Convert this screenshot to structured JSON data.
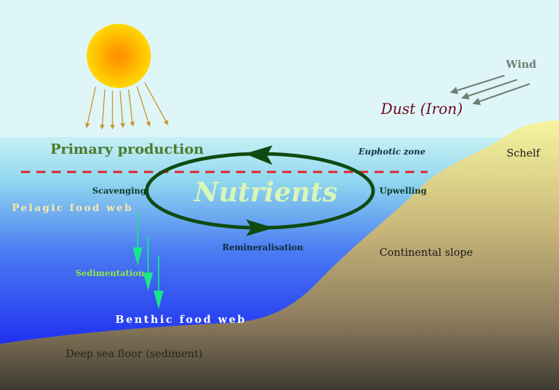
{
  "labels": {
    "wind": "Wind",
    "dust": "Dust (Iron)",
    "primary_production": "Primary production",
    "euphotic_zone": "Euphotic zone",
    "schelf": "Schelf",
    "nutrients": "Nutrients",
    "scavenging": "Scavenging",
    "upwelling": "Upwelling",
    "pelagic_food_web": "Pelagic food web",
    "remineralisation": "Remineralisation",
    "continental_slope": "Continental slope",
    "sedimentation": "Sedimentation",
    "benthic_food_web": "Benthic food web",
    "deep_sea_floor": "Deep sea floor (sediment)"
  },
  "colors": {
    "sky": "#dff6f9",
    "ocean_top": "#bfeef2",
    "ocean_bottom": "#1010f0",
    "land_top": "#f4f29a",
    "land_bottom": "#4a4438",
    "sun_core": "#ff9a00",
    "sun_edge": "#ffd400",
    "sun_rays": "#c9952e",
    "wind_arrows": "#6d8072",
    "dust_text": "#6b0f1a",
    "cycle": "#0f4a12",
    "primary_text": "#4f7a2e",
    "dashed_line": "#e0202a",
    "nutrients_text": "#d8f7b6",
    "sed_arrows": "#19e88a",
    "sed_text": "#8fe84a",
    "white_text": "#ffffff",
    "dark_label": "#1a2e3a"
  }
}
